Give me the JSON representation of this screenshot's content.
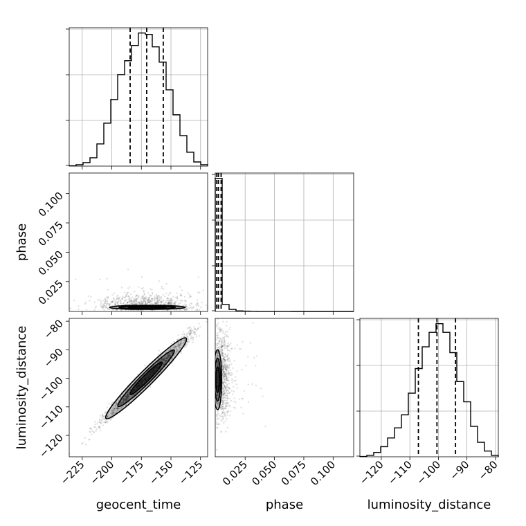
{
  "chart_data": {
    "type": "corner",
    "parameters": [
      "geocent_time",
      "phase",
      "luminosity_distance"
    ],
    "axis_labels": [
      "geocent_time",
      "phase",
      "luminosity_distance"
    ],
    "ranges": {
      "geocent_time": [
        -236,
        -119
      ],
      "phase": [
        -0.0005,
        0.1175
      ],
      "luminosity_distance": [
        -127.5,
        -79
      ]
    },
    "ticks": {
      "geocent_time": {
        "values": [
          -225,
          -200,
          -175,
          -150,
          -125
        ],
        "labels": [
          "−225",
          "−200",
          "−175",
          "−150",
          "−125"
        ]
      },
      "phase": {
        "values": [
          0.025,
          0.05,
          0.075,
          0.1
        ],
        "labels": [
          "0.025",
          "0.050",
          "0.075",
          "0.100"
        ]
      },
      "luminosity_distance": {
        "values": [
          -120,
          -110,
          -100,
          -90,
          -80
        ],
        "labels": [
          "−120",
          "−110",
          "−100",
          "−90",
          "−80"
        ]
      },
      "luminosity_distance_x": {
        "values": [
          -120,
          -110,
          -100,
          -90,
          -80
        ],
        "labels": [
          "−120",
          "−110",
          "−100",
          "−90",
          "−80"
        ]
      }
    },
    "histograms": {
      "geocent_time": {
        "edges": [
          -236,
          -230.15,
          -224.3,
          -218.45,
          -212.6,
          -206.75,
          -200.9,
          -195.05,
          -189.2,
          -183.35,
          -177.5,
          -171.65,
          -165.8,
          -159.95,
          -154.1,
          -148.25,
          -142.4,
          -136.55,
          -130.7,
          -124.85,
          -119
        ],
        "counts": [
          0.002,
          0.01,
          0.025,
          0.06,
          0.16,
          0.31,
          0.48,
          0.66,
          0.76,
          0.87,
          0.96,
          0.95,
          0.86,
          0.75,
          0.55,
          0.37,
          0.22,
          0.1,
          0.03,
          0.01
        ],
        "quantiles": [
          -184.5,
          -170.5,
          -156.5
        ]
      },
      "phase": {
        "edges": [
          -0.0005,
          0.0054,
          0.0113,
          0.0172,
          0.0231,
          0.029,
          0.0349,
          0.0408,
          0.0467,
          0.0526,
          0.0585,
          0.0644,
          0.0703,
          0.0762,
          0.0821,
          0.088,
          0.0939,
          0.0998,
          0.1057,
          0.1116,
          0.1175
        ],
        "counts": [
          0.96,
          0.05,
          0.015,
          0.004,
          0.002,
          0.001,
          0.0005,
          0.0003,
          0.0002,
          0.0001,
          0.0001,
          0,
          0,
          0,
          0,
          0,
          0,
          0,
          0,
          0
        ],
        "quantiles": [
          0.0008,
          0.0022,
          0.0045
        ]
      },
      "luminosity_distance": {
        "edges": [
          -127.5,
          -125.075,
          -122.65,
          -120.225,
          -117.8,
          -115.375,
          -112.95,
          -110.525,
          -108.1,
          -105.675,
          -103.25,
          -100.825,
          -98.4,
          -95.975,
          -93.55,
          -91.125,
          -88.7,
          -86.275,
          -83.85,
          -81.425,
          -79
        ],
        "counts": [
          0.002,
          0.01,
          0.03,
          0.07,
          0.13,
          0.2,
          0.29,
          0.44,
          0.61,
          0.76,
          0.86,
          0.92,
          0.86,
          0.72,
          0.52,
          0.38,
          0.21,
          0.1,
          0.04,
          0.01
        ],
        "quantiles": [
          -107,
          -100.5,
          -94
        ]
      }
    },
    "contours": {
      "geocent_time_vs_phase": {
        "center": [
          -170,
          0.003
        ],
        "levels": [
          {
            "rx": 32,
            "ry": 0.0017
          },
          {
            "rx": 24,
            "ry": 0.001
          },
          {
            "rx": 16,
            "ry": 0.0006
          }
        ]
      },
      "geocent_time_vs_luminosity_distance": {
        "center": [
          -171,
          -100
        ],
        "angle_deg": 45,
        "levels": [
          {
            "major": 20,
            "minor": 2.6
          },
          {
            "major": 14,
            "minor": 1.8
          },
          {
            "major": 8,
            "minor": 1.1
          }
        ]
      },
      "phase_vs_luminosity_distance": {
        "center": [
          0.0015,
          -100.5
        ],
        "levels": [
          {
            "rx": 0.0035,
            "ry": 10.5
          },
          {
            "rx": 0.0025,
            "ry": 7.5
          },
          {
            "rx": 0.0015,
            "ry": 4.5
          }
        ]
      }
    },
    "grid": true,
    "quantile_style": "dashed",
    "colors": {
      "line": "#000000",
      "grid": "#b0b0b0",
      "points": "#000000",
      "contour_fill": "#000000"
    }
  }
}
